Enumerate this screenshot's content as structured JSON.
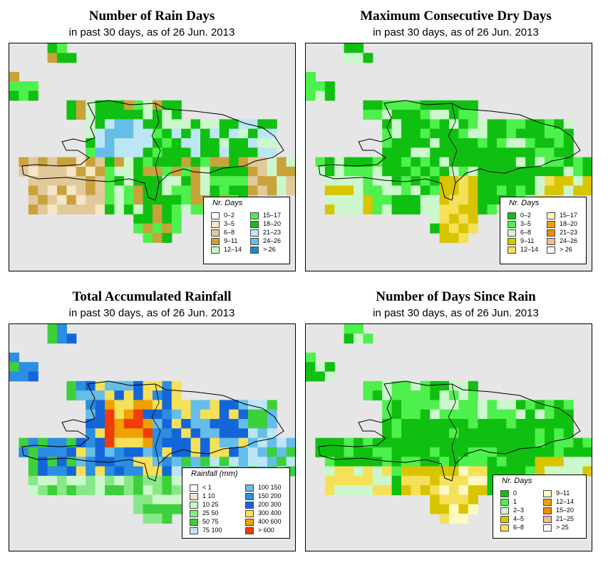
{
  "panels": [
    {
      "title": "Number of Rain Days",
      "subtitle": "in past 30 days, as of  26 Jun. 2013",
      "legend": {
        "title": "Nr. Days",
        "items": [
          {
            "label": "0–2",
            "color": "#ffffff"
          },
          {
            "label": "3–5",
            "color": "#f5e6c8"
          },
          {
            "label": "6–8",
            "color": "#e2c99b"
          },
          {
            "label": "9–11",
            "color": "#c9a23c"
          },
          {
            "label": "12–14",
            "color": "#ccf7cc"
          },
          {
            "label": "15–17",
            "color": "#4ef04e"
          },
          {
            "label": "18–20",
            "color": "#10c010"
          },
          {
            "label": "21–23",
            "color": "#bce6f5"
          },
          {
            "label": "24–26",
            "color": "#66bde8"
          },
          {
            "label": "> 26",
            "color": "#1a8ccc"
          }
        ]
      }
    },
    {
      "title": "Maximum Consecutive Dry Days",
      "subtitle": "in past 30 days, as of  26 Jun. 2013",
      "legend": {
        "title": "Nr. Days",
        "items": [
          {
            "label": "0–2",
            "color": "#10c010"
          },
          {
            "label": "3–5",
            "color": "#4ef04e"
          },
          {
            "label": "6–8",
            "color": "#ccf7cc"
          },
          {
            "label": "9–11",
            "color": "#d9c400"
          },
          {
            "label": "12–14",
            "color": "#f5e05a"
          },
          {
            "label": "15–17",
            "color": "#fff8c0"
          },
          {
            "label": "18–20",
            "color": "#f0a000"
          },
          {
            "label": "21–23",
            "color": "#f08c00"
          },
          {
            "label": "24–26",
            "color": "#f5b896"
          },
          {
            "label": "> 26",
            "color": "#ffffff"
          }
        ]
      }
    },
    {
      "title": "Total Accumulated Rainfall",
      "subtitle": "in past 30 days, as of  26 Jun. 2013",
      "legend": {
        "title": "Rainfall (mm)",
        "items": [
          {
            "label": "< 1",
            "color": "#ffffff"
          },
          {
            "label": "1   10",
            "color": "#f5e6c8"
          },
          {
            "label": "10   25",
            "color": "#ccf7cc"
          },
          {
            "label": "25   50",
            "color": "#88e888"
          },
          {
            "label": "50   75",
            "color": "#3cd03c"
          },
          {
            "label": "75   100",
            "color": "#bce6f5"
          },
          {
            "label": "100   150",
            "color": "#66bde8"
          },
          {
            "label": "150   200",
            "color": "#2c8ee0"
          },
          {
            "label": "200   300",
            "color": "#1466d8"
          },
          {
            "label": "300   400",
            "color": "#f5e05a"
          },
          {
            "label": "400   600",
            "color": "#f0a000"
          },
          {
            "label": "> 600",
            "color": "#f03c0a"
          }
        ]
      }
    },
    {
      "title": "Number of Days Since Rain",
      "subtitle": "in past 30 days, as of  26 Jun. 2013",
      "legend": {
        "title": "Nr. Days",
        "items": [
          {
            "label": "0",
            "color": "#10c010"
          },
          {
            "label": "1",
            "color": "#4ef04e"
          },
          {
            "label": "2–3",
            "color": "#ccf7cc"
          },
          {
            "label": "4–5",
            "color": "#d9c400"
          },
          {
            "label": "6–8",
            "color": "#f5e05a"
          },
          {
            "label": "9–11",
            "color": "#fff8c0"
          },
          {
            "label": "12–14",
            "color": "#f0a000"
          },
          {
            "label": "15–20",
            "color": "#f08c00"
          },
          {
            "label": "21–25",
            "color": "#f5b896"
          },
          {
            "label": "> 25",
            "color": "#ffffff"
          }
        ]
      }
    }
  ]
}
